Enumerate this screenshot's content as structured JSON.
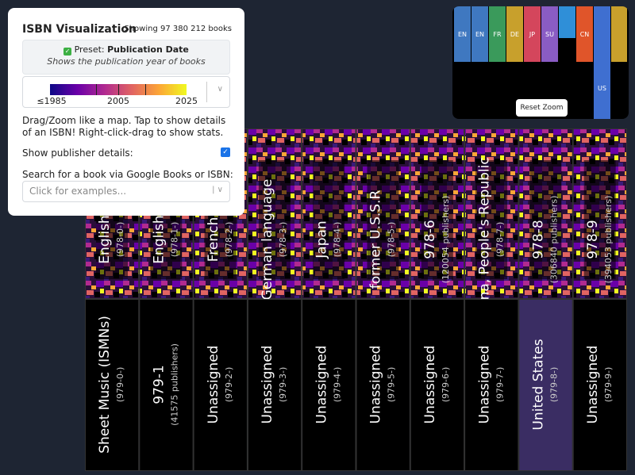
{
  "panel": {
    "title": "ISBN Visualization",
    "count": "Showing 97 380 212 books",
    "preset_label": "Preset:",
    "preset_name": "Publication Date",
    "preset_description": "Shows the publication year of books",
    "legend_labels": [
      "≤1985",
      "2005",
      "2025"
    ],
    "instructions": "Drag/Zoom like a map. Tap to show details of an ISBN! Right-click-drag to show stats.",
    "publisher_toggle": "Show publisher details:",
    "search_label": "Search for a book via Google Books or ISBN:",
    "search_placeholder": "Click for examples..."
  },
  "minimap": {
    "labels": [
      "EN",
      "EN",
      "FR",
      "DE",
      "JP",
      "SU",
      "CN",
      "US"
    ],
    "reset_button": "Reset Zoom"
  },
  "grid": {
    "rows": [
      [
        {
          "name": "English",
          "prefix": "(978-0-)"
        },
        {
          "name": "English",
          "prefix": "(978-1-)"
        },
        {
          "name": "French",
          "prefix": "(978-2-)"
        },
        {
          "name": "German language",
          "prefix": "(978-3-)"
        },
        {
          "name": "Japan",
          "prefix": "(978-4-)"
        },
        {
          "name": "former U.S.S.R",
          "prefix": "(978-5-)"
        },
        {
          "name": "978-6",
          "prefix": "(120054 publishers)"
        },
        {
          "name": "China, People's Republic",
          "prefix": "(978-7-)"
        },
        {
          "name": "978-8",
          "prefix": "(306840 publishers)"
        },
        {
          "name": "978-9",
          "prefix": "(394053 publishers)"
        }
      ],
      [
        {
          "name": "Sheet Music (ISMNs)",
          "prefix": "(979-0-)"
        },
        {
          "name": "979-1",
          "prefix": "(41575 publishers)"
        },
        {
          "name": "Unassigned",
          "prefix": "(979-2-)"
        },
        {
          "name": "Unassigned",
          "prefix": "(979-3-)"
        },
        {
          "name": "Unassigned",
          "prefix": "(979-4-)"
        },
        {
          "name": "Unassigned",
          "prefix": "(979-5-)"
        },
        {
          "name": "Unassigned",
          "prefix": "(979-6-)"
        },
        {
          "name": "Unassigned",
          "prefix": "(979-7-)"
        },
        {
          "name": "United States",
          "prefix": "(979-8-)"
        },
        {
          "name": "Unassigned",
          "prefix": "(979-9-)"
        }
      ]
    ]
  }
}
